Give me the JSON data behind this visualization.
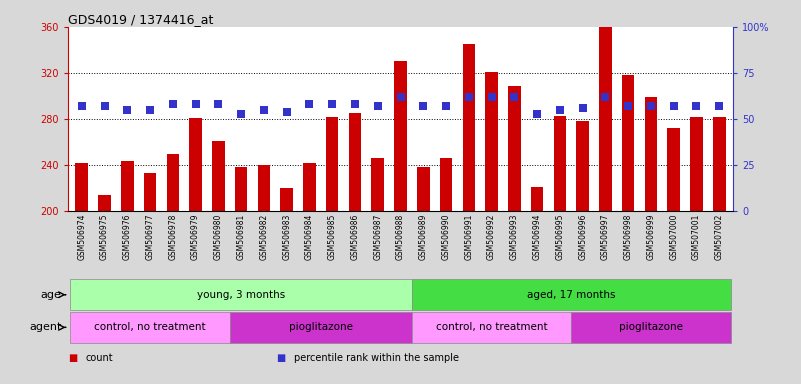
{
  "title": "GDS4019 / 1374416_at",
  "samples": [
    "GSM506974",
    "GSM506975",
    "GSM506976",
    "GSM506977",
    "GSM506978",
    "GSM506979",
    "GSM506980",
    "GSM506981",
    "GSM506982",
    "GSM506983",
    "GSM506984",
    "GSM506985",
    "GSM506986",
    "GSM506987",
    "GSM506988",
    "GSM506989",
    "GSM506990",
    "GSM506991",
    "GSM506992",
    "GSM506993",
    "GSM506994",
    "GSM506995",
    "GSM506996",
    "GSM506997",
    "GSM506998",
    "GSM506999",
    "GSM507000",
    "GSM507001",
    "GSM507002"
  ],
  "counts": [
    242,
    214,
    244,
    233,
    250,
    281,
    261,
    238,
    240,
    220,
    242,
    282,
    285,
    246,
    330,
    238,
    246,
    345,
    321,
    309,
    221,
    283,
    278,
    360,
    318,
    299,
    272,
    282,
    282
  ],
  "percentiles": [
    57,
    57,
    55,
    55,
    58,
    58,
    58,
    53,
    55,
    54,
    58,
    58,
    58,
    57,
    62,
    57,
    57,
    62,
    62,
    62,
    53,
    55,
    56,
    62,
    57,
    57,
    57,
    57,
    57
  ],
  "bar_color": "#cc0000",
  "percentile_color": "#3333cc",
  "ylim_left": [
    200,
    360
  ],
  "ylim_right": [
    0,
    100
  ],
  "yticks_left": [
    200,
    240,
    280,
    320,
    360
  ],
  "yticks_right": [
    0,
    25,
    50,
    75,
    100
  ],
  "ytick_labels_right": [
    "0",
    "25",
    "50",
    "75",
    "100%"
  ],
  "plot_bg": "#ffffff",
  "fig_bg": "#d8d8d8",
  "age_groups": [
    {
      "label": "young, 3 months",
      "start": 0,
      "end": 15,
      "color": "#aaffaa"
    },
    {
      "label": "aged, 17 months",
      "start": 15,
      "end": 29,
      "color": "#44dd44"
    }
  ],
  "agent_groups": [
    {
      "label": "control, no treatment",
      "start": 0,
      "end": 7,
      "color": "#ff99ff"
    },
    {
      "label": "pioglitazone",
      "start": 7,
      "end": 15,
      "color": "#cc33cc"
    },
    {
      "label": "control, no treatment",
      "start": 15,
      "end": 22,
      "color": "#ff99ff"
    },
    {
      "label": "pioglitazone",
      "start": 22,
      "end": 29,
      "color": "#cc33cc"
    }
  ],
  "legend_items": [
    {
      "label": "count",
      "color": "#cc0000"
    },
    {
      "label": "percentile rank within the sample",
      "color": "#3333cc"
    }
  ],
  "bar_width": 0.55
}
